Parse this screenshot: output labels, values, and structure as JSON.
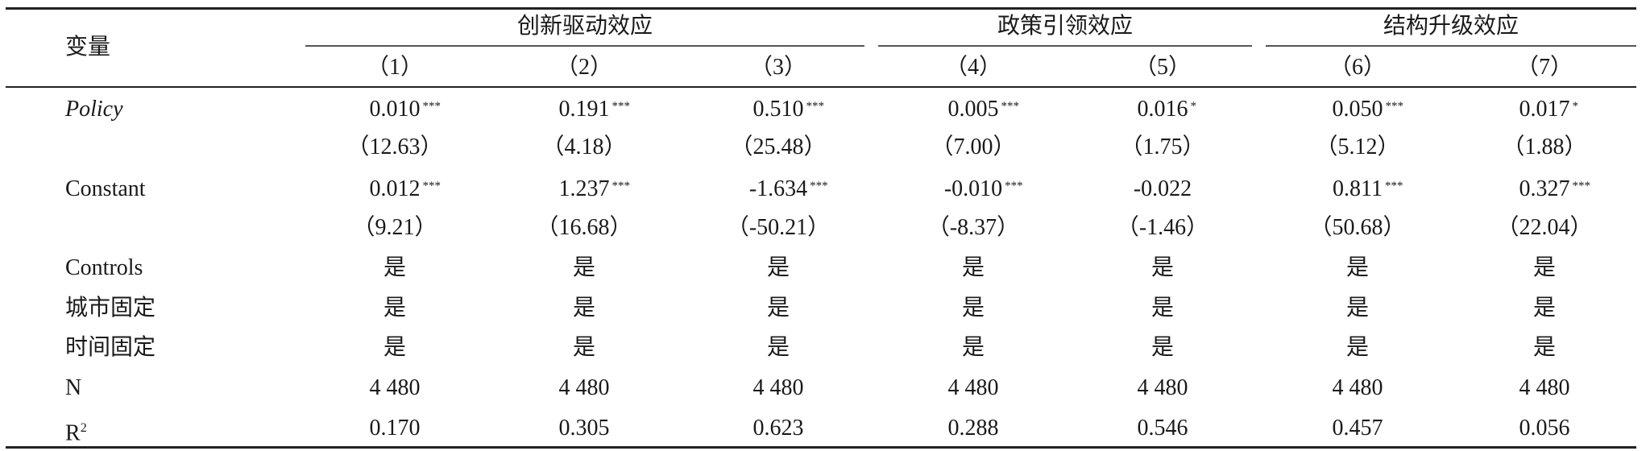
{
  "header": {
    "variable_label": "变量",
    "groups": [
      "创新驱动效应",
      "政策引领效应",
      "结构升级效应"
    ],
    "columns": [
      "（1）",
      "（2）",
      "（3）",
      "（4）",
      "（5）",
      "（6）",
      "（7）"
    ]
  },
  "rows": [
    {
      "label": "Policy",
      "italic": true,
      "cells": [
        [
          "0.010",
          "***"
        ],
        [
          "0.191",
          "***"
        ],
        [
          "0.510",
          "***"
        ],
        [
          "0.005",
          "***"
        ],
        [
          "0.016",
          "*"
        ],
        [
          "0.050",
          "***"
        ],
        [
          "0.017",
          "*"
        ]
      ]
    },
    {
      "label": "",
      "cells": [
        [
          "（12.63）",
          ""
        ],
        [
          "（4.18）",
          ""
        ],
        [
          "（25.48）",
          ""
        ],
        [
          "（7.00）",
          ""
        ],
        [
          "（1.75）",
          ""
        ],
        [
          "（5.12）",
          ""
        ],
        [
          "（1.88）",
          ""
        ]
      ]
    },
    {
      "label": "Constant",
      "cells": [
        [
          "0.012",
          "***"
        ],
        [
          "1.237",
          "***"
        ],
        [
          "-1.634",
          "***"
        ],
        [
          "-0.010",
          "***"
        ],
        [
          "-0.022",
          ""
        ],
        [
          "0.811",
          "***"
        ],
        [
          "0.327",
          "***"
        ]
      ]
    },
    {
      "label": "",
      "cells": [
        [
          "（9.21）",
          ""
        ],
        [
          "（16.68）",
          ""
        ],
        [
          "（-50.21）",
          ""
        ],
        [
          "（-8.37）",
          ""
        ],
        [
          "（-1.46）",
          ""
        ],
        [
          "（50.68）",
          ""
        ],
        [
          "（22.04）",
          ""
        ]
      ]
    },
    {
      "label": "Controls",
      "cells": [
        [
          "是",
          ""
        ],
        [
          "是",
          ""
        ],
        [
          "是",
          ""
        ],
        [
          "是",
          ""
        ],
        [
          "是",
          ""
        ],
        [
          "是",
          ""
        ],
        [
          "是",
          ""
        ]
      ]
    },
    {
      "label": "城市固定",
      "cells": [
        [
          "是",
          ""
        ],
        [
          "是",
          ""
        ],
        [
          "是",
          ""
        ],
        [
          "是",
          ""
        ],
        [
          "是",
          ""
        ],
        [
          "是",
          ""
        ],
        [
          "是",
          ""
        ]
      ]
    },
    {
      "label": "时间固定",
      "cells": [
        [
          "是",
          ""
        ],
        [
          "是",
          ""
        ],
        [
          "是",
          ""
        ],
        [
          "是",
          ""
        ],
        [
          "是",
          ""
        ],
        [
          "是",
          ""
        ],
        [
          "是",
          ""
        ]
      ]
    },
    {
      "label": "N",
      "cells": [
        [
          "4 480",
          ""
        ],
        [
          "4 480",
          ""
        ],
        [
          "4 480",
          ""
        ],
        [
          "4 480",
          ""
        ],
        [
          "4 480",
          ""
        ],
        [
          "4 480",
          ""
        ],
        [
          "4 480",
          ""
        ]
      ]
    },
    {
      "label": "R",
      "label_sup": "2",
      "cells": [
        [
          "0.170",
          ""
        ],
        [
          "0.305",
          ""
        ],
        [
          "0.623",
          ""
        ],
        [
          "0.288",
          ""
        ],
        [
          "0.546",
          ""
        ],
        [
          "0.457",
          ""
        ],
        [
          "0.056",
          ""
        ]
      ]
    }
  ]
}
